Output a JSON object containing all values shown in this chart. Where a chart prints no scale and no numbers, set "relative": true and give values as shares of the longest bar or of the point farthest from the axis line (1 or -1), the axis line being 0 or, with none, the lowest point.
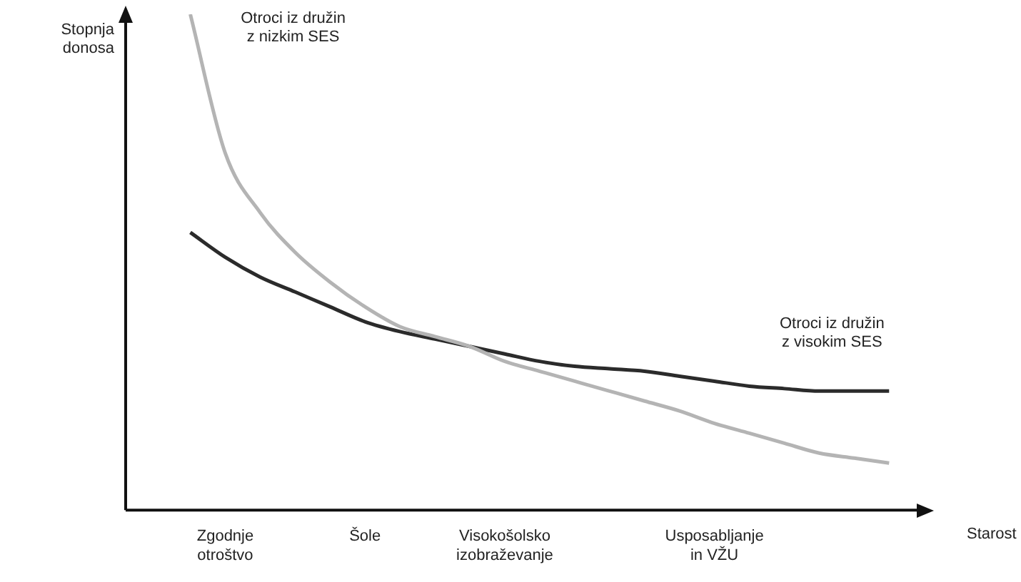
{
  "chart_data": {
    "type": "line",
    "xlabel": "Starost",
    "ylabel": "Stopnja\ndonosa",
    "relative": true,
    "grid": false,
    "legend": false,
    "marker": "none",
    "line_style": "solid",
    "tick_labels": "x",
    "categories": [
      null,
      "Zgodnje\notroštvo",
      null,
      null,
      null,
      "Šole",
      null,
      null,
      null,
      "Visokošolsko\nizobraževanje",
      null,
      null,
      null,
      null,
      null,
      "Usposabljanje\nin VŽU",
      null,
      null,
      null,
      null,
      null
    ],
    "series": [
      {
        "name": "Otroci iz družin\nz nizkim SES",
        "color": "#b4b4b4",
        "values": [
          1.0,
          0.72,
          0.6,
          0.52,
          0.46,
          0.41,
          0.37,
          0.35,
          0.33,
          0.3,
          0.28,
          0.26,
          0.24,
          0.22,
          0.2,
          0.175,
          0.155,
          0.135,
          0.115,
          0.105,
          0.095
        ]
      },
      {
        "name": "Otroci iz družin\nz visokim SES",
        "color": "#2b2b2b",
        "values": [
          0.56,
          0.51,
          0.47,
          0.44,
          0.41,
          0.38,
          0.36,
          0.345,
          0.33,
          0.315,
          0.3,
          0.29,
          0.285,
          0.28,
          0.27,
          0.26,
          0.25,
          0.245,
          0.24,
          0.24,
          0.24
        ]
      }
    ]
  }
}
